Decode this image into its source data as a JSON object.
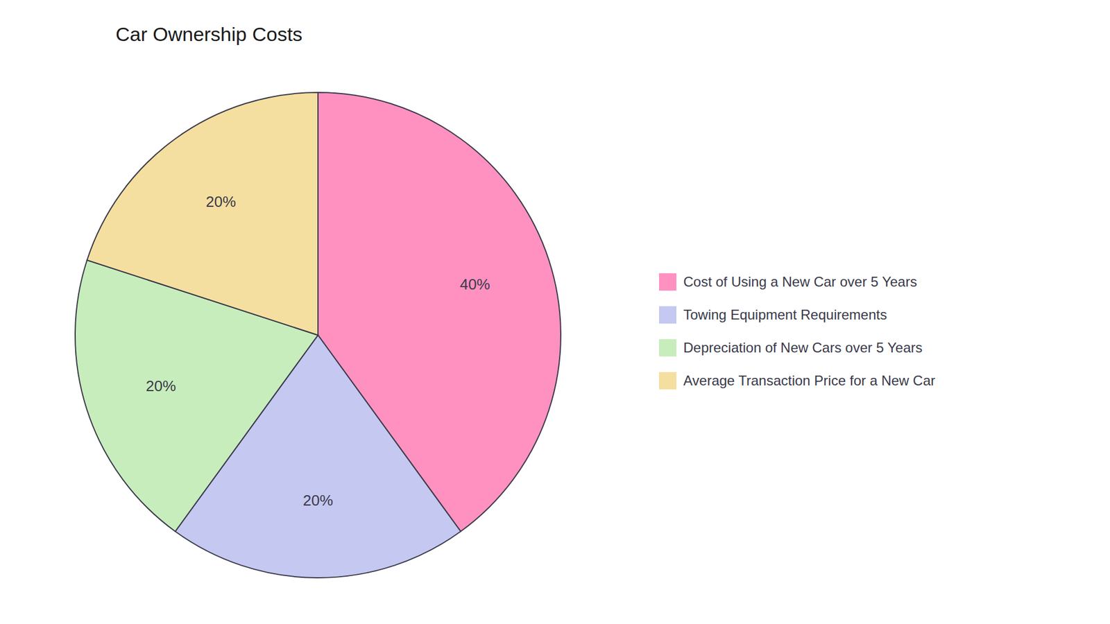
{
  "chart_data": {
    "type": "pie",
    "title": "Car Ownership Costs",
    "categories": [
      "Cost of Using a New Car over 5 Years",
      "Towing Equipment Requirements",
      "Depreciation of New Cars over 5 Years",
      "Average Transaction Price for a New Car"
    ],
    "values": [
      40,
      20,
      20,
      20
    ],
    "value_labels": [
      "40%",
      "20%",
      "20%",
      "20%"
    ],
    "colors": [
      "#FF91C1",
      "#C5C8F0",
      "#C8EDBD",
      "#F5DFA0"
    ],
    "data_labels": true,
    "legend": "right"
  }
}
